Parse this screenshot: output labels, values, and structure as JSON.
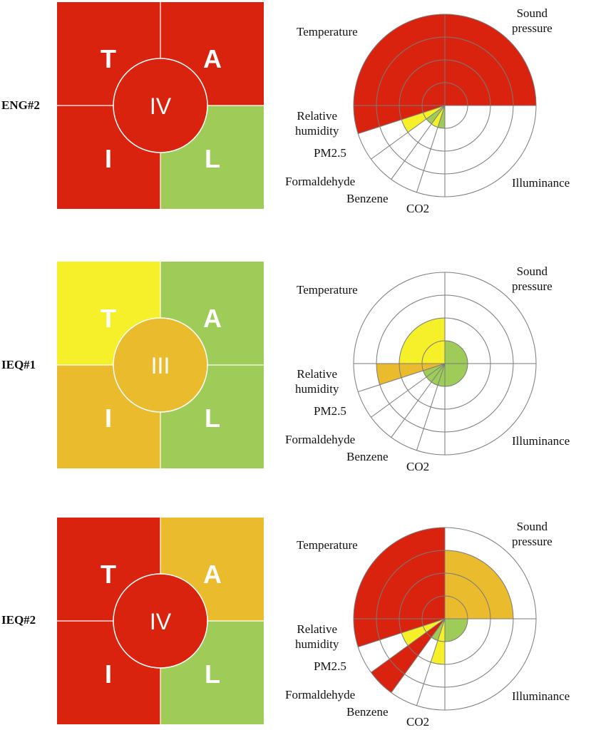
{
  "colors": {
    "red": "#d9230f",
    "green": "#9fcc59",
    "yellow": "#f5f02a",
    "orange": "#ebbb2e",
    "grid": "#7a7a7a",
    "white": "#ffffff"
  },
  "panels": [
    {
      "label": "ENG#2",
      "quadrants": {
        "T": {
          "letter": "T",
          "level": "red"
        },
        "A": {
          "letter": "A",
          "level": "red"
        },
        "I": {
          "letter": "I",
          "level": "red"
        },
        "L": {
          "letter": "L",
          "level": "green"
        },
        "center": {
          "numeral": "IV",
          "level": "red"
        }
      },
      "wheel": {
        "labels": {
          "temperature": "Temperature",
          "sound_pressure_1": "Sound",
          "sound_pressure_2": "pressure",
          "humidity_1": "Relative",
          "humidity_2": "humidity",
          "pm25": "PM2.5",
          "formaldehyde": "Formaldehyde",
          "benzene": "Benzene",
          "co2": "CO2",
          "illuminance": "Illuminance"
        },
        "segments": [
          {
            "start": 0,
            "end": 90,
            "level": 4,
            "color": "red"
          },
          {
            "start": 90,
            "end": 180,
            "level": 0,
            "color": "white"
          },
          {
            "start": 180,
            "end": 198,
            "level": 1,
            "color": "green"
          },
          {
            "start": 198,
            "end": 216,
            "level": 1,
            "color": "yellow"
          },
          {
            "start": 216,
            "end": 234,
            "level": 1,
            "color": "green"
          },
          {
            "start": 234,
            "end": 252,
            "level": 2,
            "color": "yellow"
          },
          {
            "start": 252,
            "end": 270,
            "level": 4,
            "color": "red"
          },
          {
            "start": 270,
            "end": 360,
            "level": 4,
            "color": "red"
          }
        ]
      }
    },
    {
      "label": "IEQ#1",
      "quadrants": {
        "T": {
          "letter": "T",
          "level": "yellow"
        },
        "A": {
          "letter": "A",
          "level": "green"
        },
        "I": {
          "letter": "I",
          "level": "orange"
        },
        "L": {
          "letter": "L",
          "level": "green"
        },
        "center": {
          "numeral": "III",
          "level": "orange"
        }
      },
      "wheel": {
        "labels": {
          "temperature": "Temperature",
          "sound_pressure_1": "Sound",
          "sound_pressure_2": "pressure",
          "humidity_1": "Relative",
          "humidity_2": "humidity",
          "pm25": "PM2.5",
          "formaldehyde": "Formaldehyde",
          "benzene": "Benzene",
          "co2": "CO2",
          "illuminance": "Illuminance"
        },
        "segments": [
          {
            "start": 0,
            "end": 90,
            "level": 1,
            "color": "green"
          },
          {
            "start": 90,
            "end": 180,
            "level": 1,
            "color": "green"
          },
          {
            "start": 180,
            "end": 198,
            "level": 1,
            "color": "green"
          },
          {
            "start": 198,
            "end": 216,
            "level": 1,
            "color": "green"
          },
          {
            "start": 216,
            "end": 234,
            "level": 1,
            "color": "green"
          },
          {
            "start": 234,
            "end": 252,
            "level": 1,
            "color": "green"
          },
          {
            "start": 252,
            "end": 270,
            "level": 3,
            "color": "orange"
          },
          {
            "start": 270,
            "end": 360,
            "level": 2,
            "color": "yellow"
          }
        ]
      }
    },
    {
      "label": "IEQ#2",
      "quadrants": {
        "T": {
          "letter": "T",
          "level": "red"
        },
        "A": {
          "letter": "A",
          "level": "orange"
        },
        "I": {
          "letter": "I",
          "level": "red"
        },
        "L": {
          "letter": "L",
          "level": "green"
        },
        "center": {
          "numeral": "IV",
          "level": "red"
        }
      },
      "wheel": {
        "labels": {
          "temperature": "Temperature",
          "sound_pressure_1": "Sound",
          "sound_pressure_2": "pressure",
          "humidity_1": "Relative",
          "humidity_2": "humidity",
          "pm25": "PM2.5",
          "formaldehyde": "Formaldehyde",
          "benzene": "Benzene",
          "co2": "CO2",
          "illuminance": "Illuminance"
        },
        "segments": [
          {
            "start": 0,
            "end": 90,
            "level": 3,
            "color": "orange"
          },
          {
            "start": 90,
            "end": 180,
            "level": 1,
            "color": "green"
          },
          {
            "start": 180,
            "end": 198,
            "level": 2,
            "color": "yellow"
          },
          {
            "start": 198,
            "end": 216,
            "level": 1,
            "color": "green"
          },
          {
            "start": 216,
            "end": 234,
            "level": 4,
            "color": "red"
          },
          {
            "start": 234,
            "end": 252,
            "level": 2,
            "color": "yellow"
          },
          {
            "start": 252,
            "end": 270,
            "level": 4,
            "color": "red"
          },
          {
            "start": 270,
            "end": 360,
            "level": 4,
            "color": "red"
          }
        ]
      }
    }
  ]
}
